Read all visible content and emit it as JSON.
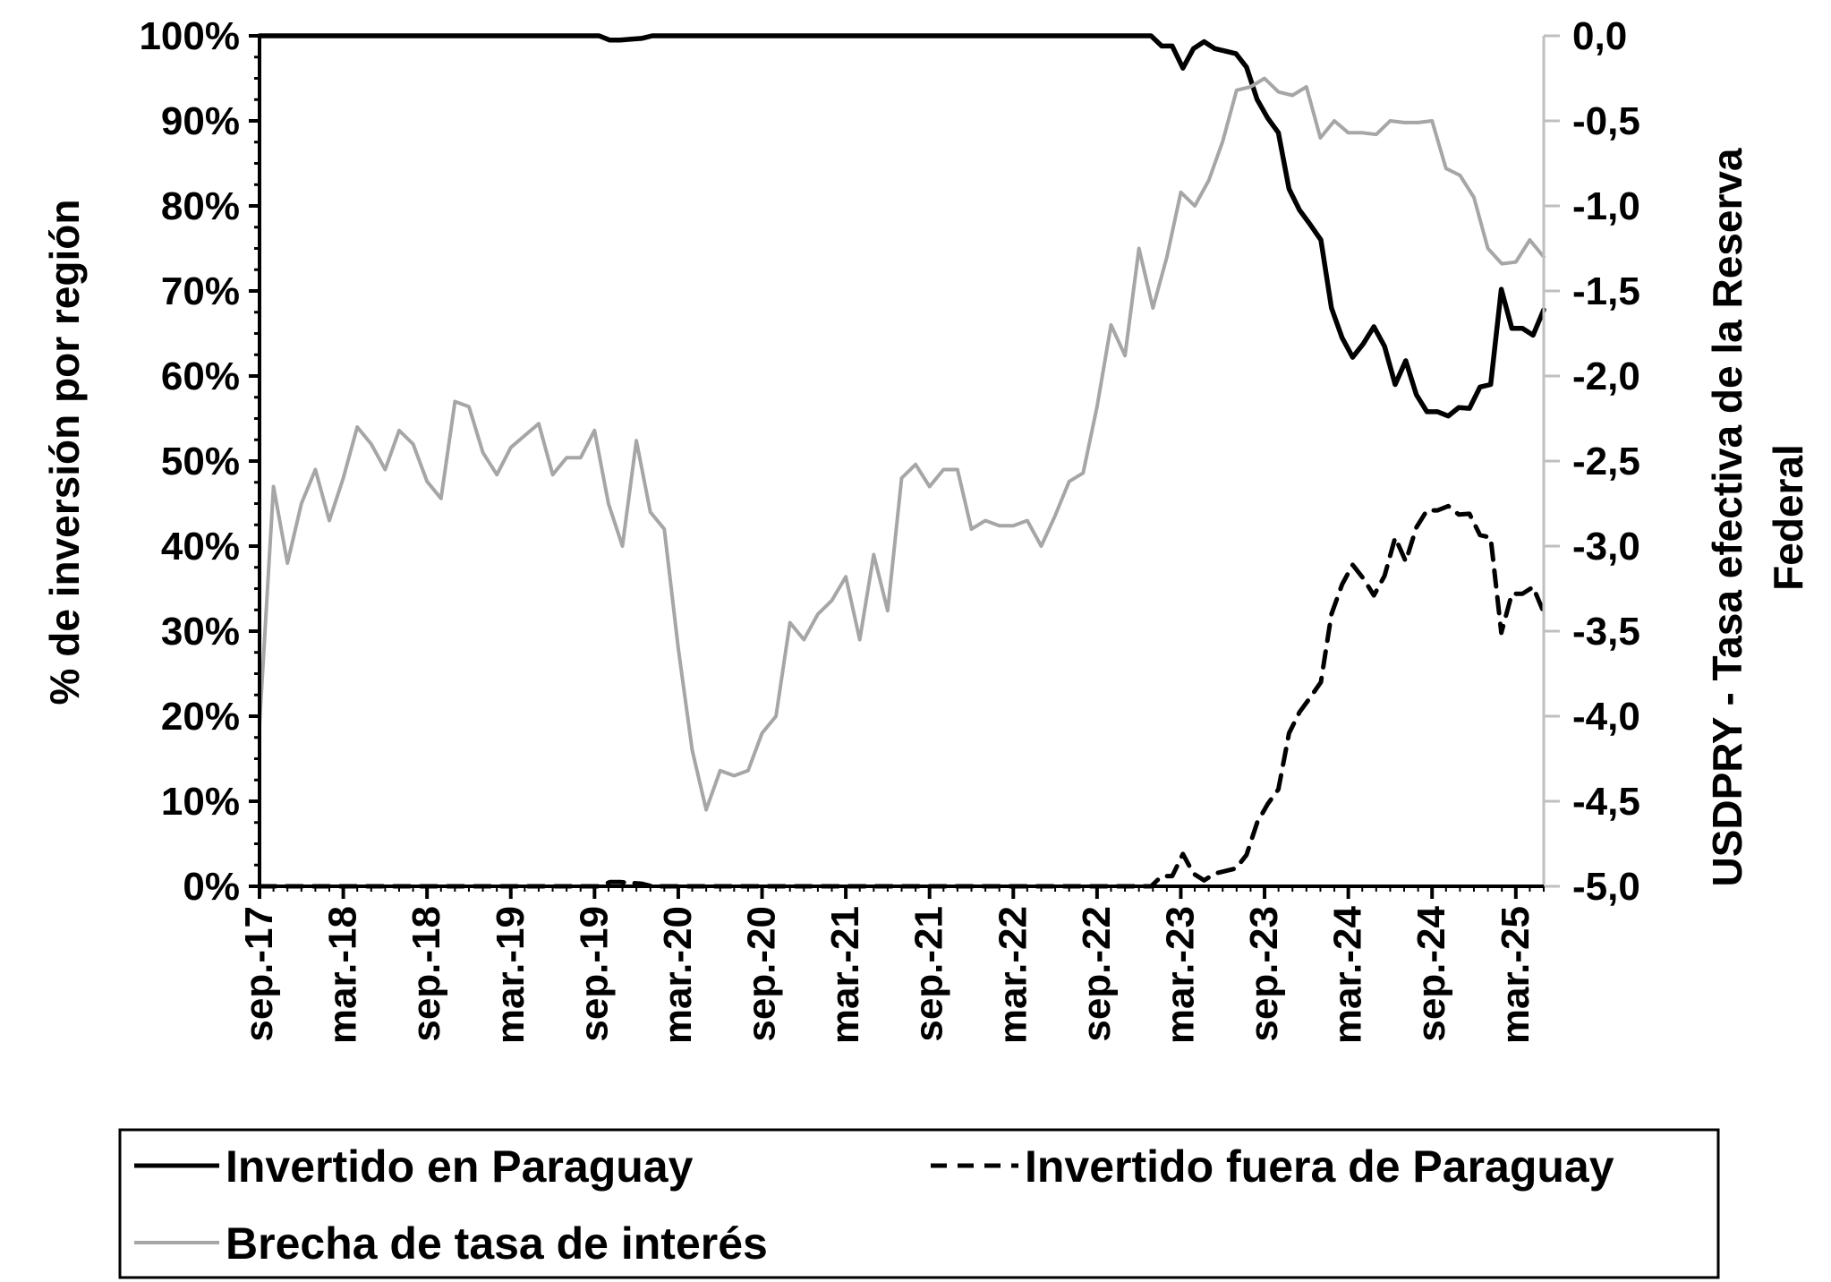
{
  "chart_data": {
    "type": "line",
    "dual_axis": true,
    "x_labels": [
      "sep.-17",
      "mar.-18",
      "sep.-18",
      "mar.-19",
      "sep.-19",
      "mar.-20",
      "sep.-20",
      "mar.-21",
      "sep.-21",
      "mar.-22",
      "sep.-22",
      "mar.-23",
      "sep.-23",
      "mar.-24",
      "sep.-24",
      "mar.-25"
    ],
    "y_left": {
      "label": "% de inversión por región",
      "ylim": [
        0,
        100
      ],
      "ticks": [
        0,
        10,
        20,
        30,
        40,
        50,
        60,
        70,
        80,
        90,
        100
      ],
      "tick_labels": [
        "0%",
        "10%",
        "20%",
        "30%",
        "40%",
        "50%",
        "60%",
        "70%",
        "80%",
        "90%",
        "100%"
      ]
    },
    "y_right": {
      "label_line1": "USDPRY - Tasa efectiva de la Reserva",
      "label_line2": "Federal",
      "ylim": [
        -5.0,
        0.0
      ],
      "ticks": [
        0.0,
        -0.5,
        -1.0,
        -1.5,
        -2.0,
        -2.5,
        -3.0,
        -3.5,
        -4.0,
        -4.5,
        -5.0
      ],
      "tick_labels": [
        "0,0",
        "-0,5",
        "-1,0",
        "-1,5",
        "-2,0",
        "-2,5",
        "-3,0",
        "-3,5",
        "-4,0",
        "-4,5",
        "-5,0"
      ]
    },
    "series": [
      {
        "name": "Invertido en Paraguay",
        "axis": "left",
        "color": "#000000",
        "style": "solid",
        "points": [
          [
            0,
            100
          ],
          [
            32,
            100
          ],
          [
            33,
            99.5
          ],
          [
            34,
            99.5
          ],
          [
            35,
            99.6
          ],
          [
            36,
            99.7
          ],
          [
            37,
            100
          ],
          [
            84,
            100
          ],
          [
            85,
            98.8
          ],
          [
            86,
            98.8
          ],
          [
            87,
            96.2
          ],
          [
            88,
            98.5
          ],
          [
            89,
            99.3
          ],
          [
            90,
            98.5
          ],
          [
            91,
            98.2
          ],
          [
            92,
            97.9
          ],
          [
            93,
            96.3
          ],
          [
            94,
            92.5
          ],
          [
            95,
            90.3
          ],
          [
            96,
            88.6
          ],
          [
            97,
            82
          ],
          [
            98,
            79.5
          ],
          [
            99,
            77.8
          ],
          [
            100,
            76
          ],
          [
            101,
            68
          ],
          [
            102,
            64.5
          ],
          [
            103,
            62.2
          ],
          [
            104,
            63.8
          ],
          [
            105,
            65.8
          ],
          [
            106,
            63.5
          ],
          [
            107,
            59
          ],
          [
            108,
            61.8
          ],
          [
            109,
            57.8
          ],
          [
            110,
            55.8
          ],
          [
            111,
            55.8
          ],
          [
            112,
            55.3
          ],
          [
            113,
            56.3
          ],
          [
            114,
            56.2
          ],
          [
            115,
            58.7
          ],
          [
            116,
            59
          ],
          [
            117,
            70.2
          ],
          [
            118,
            65.6
          ],
          [
            119,
            65.6
          ],
          [
            120,
            64.8
          ],
          [
            121,
            67.8
          ]
        ]
      },
      {
        "name": "Invertido fuera de Paraguay",
        "axis": "left",
        "color": "#000000",
        "style": "dashed",
        "points": [
          [
            0,
            0
          ],
          [
            32,
            0
          ],
          [
            33,
            0.5
          ],
          [
            34,
            0.5
          ],
          [
            35,
            0.4
          ],
          [
            36,
            0.3
          ],
          [
            37,
            0
          ],
          [
            84,
            0
          ],
          [
            85,
            1.2
          ],
          [
            86,
            1.2
          ],
          [
            87,
            3.8
          ],
          [
            88,
            1.5
          ],
          [
            89,
            0.7
          ],
          [
            90,
            1.5
          ],
          [
            91,
            1.8
          ],
          [
            92,
            2.1
          ],
          [
            93,
            3.7
          ],
          [
            94,
            7.5
          ],
          [
            95,
            9.7
          ],
          [
            96,
            11.4
          ],
          [
            97,
            18
          ],
          [
            98,
            20.5
          ],
          [
            99,
            22.2
          ],
          [
            100,
            24
          ],
          [
            101,
            32
          ],
          [
            102,
            35.5
          ],
          [
            103,
            37.8
          ],
          [
            104,
            36.2
          ],
          [
            105,
            34.2
          ],
          [
            106,
            36.5
          ],
          [
            107,
            41
          ],
          [
            108,
            38.2
          ],
          [
            109,
            42.2
          ],
          [
            110,
            44.2
          ],
          [
            111,
            44.2
          ],
          [
            112,
            44.7
          ],
          [
            113,
            43.7
          ],
          [
            114,
            43.8
          ],
          [
            115,
            41.3
          ],
          [
            116,
            41
          ],
          [
            117,
            29.8
          ],
          [
            118,
            34.4
          ],
          [
            119,
            34.4
          ],
          [
            120,
            35.2
          ],
          [
            121,
            32.2
          ]
        ]
      },
      {
        "name": "Brecha de tasa de interés",
        "axis": "right",
        "color": "#a6a6a6",
        "style": "solid",
        "points": [
          [
            0,
            -4.05
          ],
          [
            1,
            -2.65
          ],
          [
            2,
            -3.1
          ],
          [
            3,
            -2.75
          ],
          [
            4,
            -2.55
          ],
          [
            5,
            -2.85
          ],
          [
            6,
            -2.6
          ],
          [
            7,
            -2.3
          ],
          [
            8,
            -2.4
          ],
          [
            9,
            -2.55
          ],
          [
            10,
            -2.32
          ],
          [
            11,
            -2.4
          ],
          [
            12,
            -2.62
          ],
          [
            13,
            -2.72
          ],
          [
            14,
            -2.15
          ],
          [
            15,
            -2.18
          ],
          [
            16,
            -2.45
          ],
          [
            17,
            -2.58
          ],
          [
            18,
            -2.42
          ],
          [
            19,
            -2.35
          ],
          [
            20,
            -2.28
          ],
          [
            21,
            -2.58
          ],
          [
            22,
            -2.48
          ],
          [
            23,
            -2.48
          ],
          [
            24,
            -2.32
          ],
          [
            25,
            -2.75
          ],
          [
            26,
            -3.0
          ],
          [
            27,
            -2.38
          ],
          [
            28,
            -2.8
          ],
          [
            29,
            -2.9
          ],
          [
            30,
            -3.6
          ],
          [
            31,
            -4.2
          ],
          [
            32,
            -4.55
          ],
          [
            33,
            -4.32
          ],
          [
            34,
            -4.35
          ],
          [
            35,
            -4.32
          ],
          [
            36,
            -4.1
          ],
          [
            37,
            -4.0
          ],
          [
            38,
            -3.45
          ],
          [
            39,
            -3.55
          ],
          [
            40,
            -3.4
          ],
          [
            41,
            -3.32
          ],
          [
            42,
            -3.18
          ],
          [
            43,
            -3.55
          ],
          [
            44,
            -3.05
          ],
          [
            45,
            -3.38
          ],
          [
            46,
            -2.6
          ],
          [
            47,
            -2.52
          ],
          [
            48,
            -2.65
          ],
          [
            49,
            -2.55
          ],
          [
            50,
            -2.55
          ],
          [
            51,
            -2.9
          ],
          [
            52,
            -2.85
          ],
          [
            53,
            -2.88
          ],
          [
            54,
            -2.88
          ],
          [
            55,
            -2.85
          ],
          [
            56,
            -3.0
          ],
          [
            57,
            -2.82
          ],
          [
            58,
            -2.62
          ],
          [
            59,
            -2.57
          ],
          [
            60,
            -2.18
          ],
          [
            61,
            -1.7
          ],
          [
            62,
            -1.88
          ],
          [
            63,
            -1.25
          ],
          [
            64,
            -1.6
          ],
          [
            65,
            -1.3
          ],
          [
            66,
            -0.92
          ],
          [
            67,
            -1.0
          ],
          [
            68,
            -0.85
          ],
          [
            69,
            -0.62
          ],
          [
            70,
            -0.32
          ],
          [
            71,
            -0.3
          ],
          [
            72,
            -0.25
          ],
          [
            73,
            -0.33
          ],
          [
            74,
            -0.35
          ],
          [
            75,
            -0.3
          ],
          [
            76,
            -0.6
          ],
          [
            77,
            -0.5
          ],
          [
            78,
            -0.57
          ],
          [
            79,
            -0.57
          ],
          [
            80,
            -0.58
          ],
          [
            81,
            -0.5
          ],
          [
            82,
            -0.51
          ],
          [
            83,
            -0.51
          ],
          [
            84,
            -0.5
          ],
          [
            85,
            -0.78
          ],
          [
            86,
            -0.82
          ],
          [
            87,
            -0.95
          ],
          [
            88,
            -1.25
          ],
          [
            89,
            -1.34
          ],
          [
            90,
            -1.33
          ],
          [
            91,
            -1.2
          ],
          [
            92,
            -1.3
          ]
        ]
      }
    ],
    "legend": {
      "placement": "bottom",
      "entries": [
        "Invertido en Paraguay",
        "Invertido fuera de Paraguay",
        "Brecha de tasa de interés"
      ]
    }
  }
}
